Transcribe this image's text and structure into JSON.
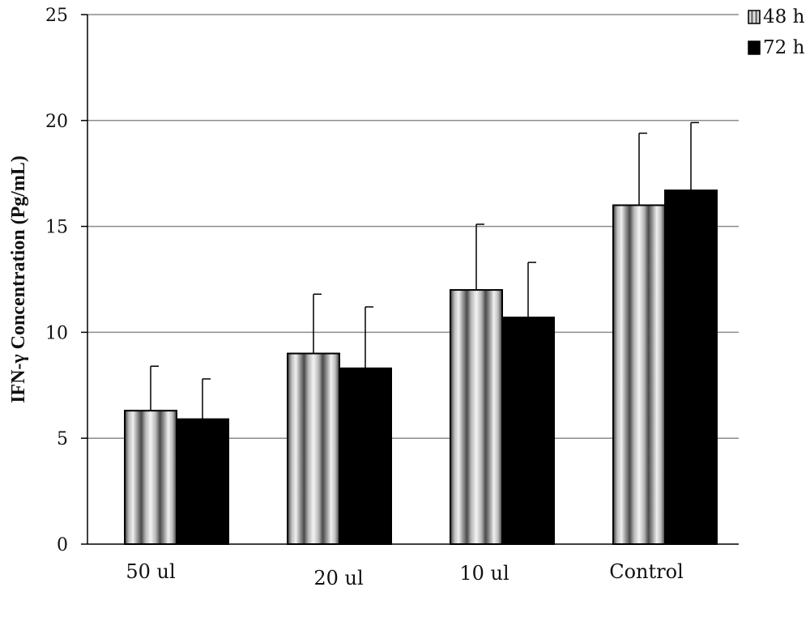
{
  "chart_data": {
    "type": "bar",
    "ylabel": "IFN-γ Concentration (Pg/mL)",
    "xlabel": "",
    "ylim": [
      0,
      25
    ],
    "yticks": [
      "0",
      "5",
      "10",
      "15",
      "20",
      "25"
    ],
    "grid": true,
    "legend_position": "top-right",
    "categories": [
      "50 ul",
      "20 ul",
      "10 ul",
      "Control"
    ],
    "series": [
      {
        "name": "48 h",
        "values": [
          6.3,
          9.0,
          12.0,
          16.0
        ],
        "errors": [
          2.1,
          2.8,
          3.1,
          3.4
        ],
        "pattern": "vertical-stripes"
      },
      {
        "name": "72 h",
        "values": [
          5.9,
          8.3,
          10.7,
          16.7
        ],
        "errors": [
          1.9,
          2.9,
          2.6,
          3.2
        ],
        "pattern": "solid",
        "color": "#000000"
      }
    ],
    "colors": {
      "axis": "#000000",
      "grid": "#8c8c8c",
      "bar_dark": "#000000",
      "stripe_light": "#e6e6e6",
      "stripe_dark": "#6a6a6a"
    }
  }
}
